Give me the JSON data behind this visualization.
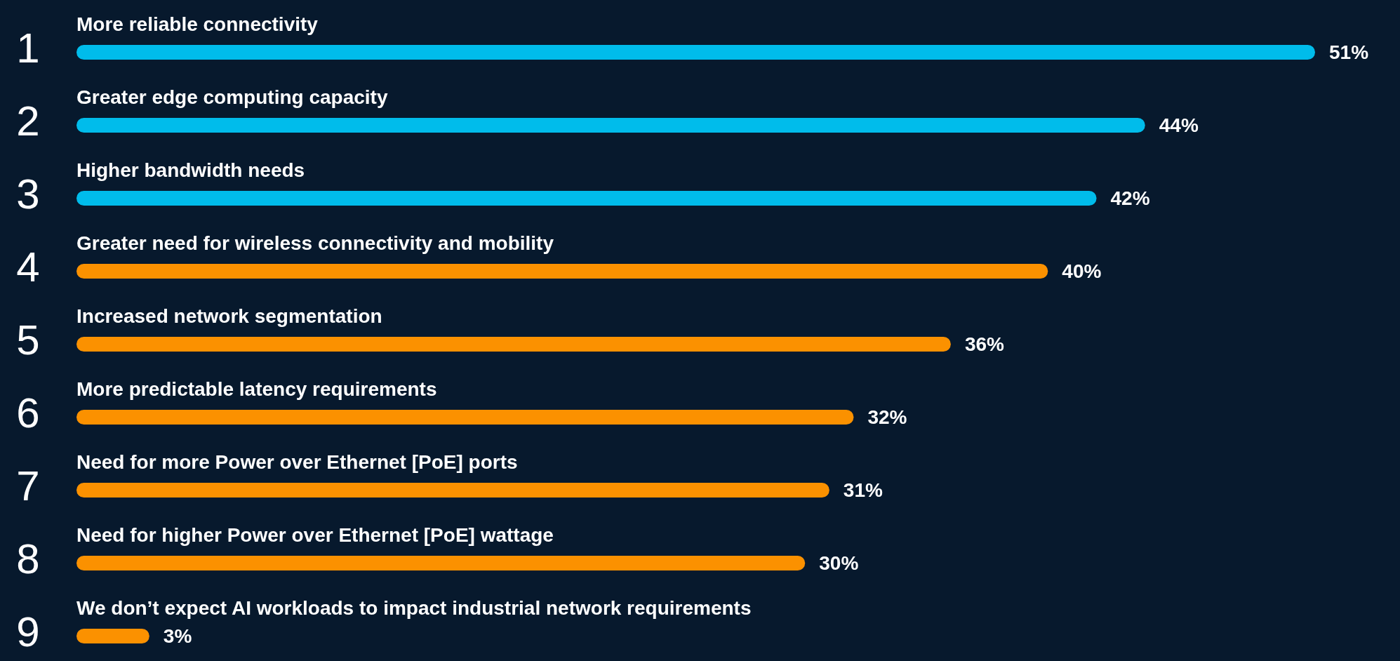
{
  "chart_data": {
    "type": "bar",
    "orientation": "horizontal",
    "categories": [
      "More reliable connectivity",
      "Greater edge computing capacity",
      "Higher bandwidth needs",
      "Greater need for wireless connectivity and mobility",
      "Increased network segmentation",
      "More predictable latency requirements",
      "Need for more Power over Ethernet [PoE] ports",
      "Need for higher Power over Ethernet [PoE] wattage",
      "We don’t expect AI workloads to impact industrial network requirements"
    ],
    "values": [
      51,
      44,
      42,
      40,
      36,
      32,
      31,
      30,
      3
    ],
    "value_labels": [
      "51%",
      "44%",
      "42%",
      "40%",
      "36%",
      "32%",
      "31%",
      "30%",
      "3%"
    ],
    "colors": [
      "#00bceb",
      "#00bceb",
      "#00bceb",
      "#fb9100",
      "#fb9100",
      "#fb9100",
      "#fb9100",
      "#fb9100",
      "#fb9100"
    ],
    "annotations": [
      "1",
      "2",
      "3",
      "4",
      "5",
      "6",
      "7",
      "8",
      "9"
    ]
  }
}
